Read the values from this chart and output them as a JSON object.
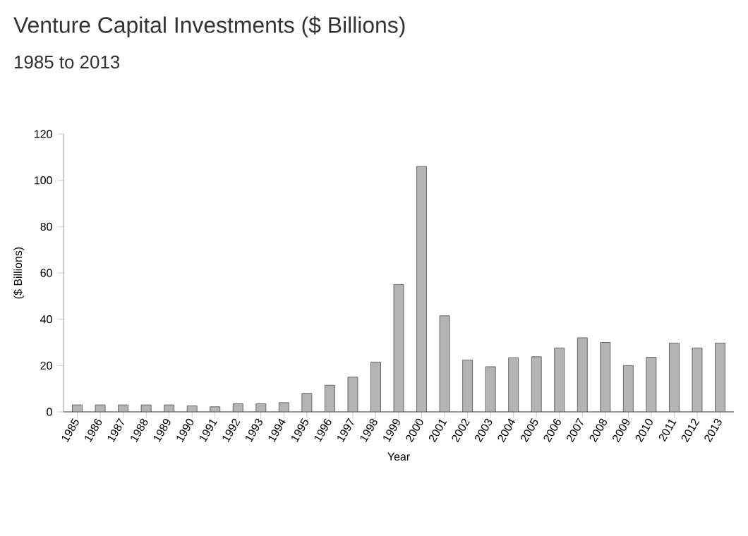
{
  "chart_data": {
    "type": "bar",
    "title": "Venture Capital Investments ($ Billions)",
    "subtitle": "1985 to 2013",
    "xlabel": "Year",
    "ylabel": "($ Billions)",
    "categories": [
      "1985",
      "1986",
      "1987",
      "1988",
      "1989",
      "1990",
      "1991",
      "1992",
      "1993",
      "1994",
      "1995",
      "1996",
      "1997",
      "1998",
      "1999",
      "2000",
      "2001",
      "2002",
      "2003",
      "2004",
      "2005",
      "2006",
      "2007",
      "2008",
      "2009",
      "2010",
      "2011",
      "2012",
      "2013"
    ],
    "values": [
      3,
      3,
      3,
      3,
      3,
      2.6,
      2.2,
      3.5,
      3.5,
      4,
      8,
      11.5,
      15,
      21.5,
      55,
      106,
      41.5,
      22.4,
      19.5,
      23.4,
      23.8,
      27.6,
      32,
      30,
      20,
      23.6,
      29.7,
      27.6,
      29.7
    ],
    "color": "#b4b4b4",
    "ylim": [
      0,
      120
    ],
    "yticks": [
      0,
      20,
      40,
      60,
      80,
      100,
      120
    ]
  }
}
